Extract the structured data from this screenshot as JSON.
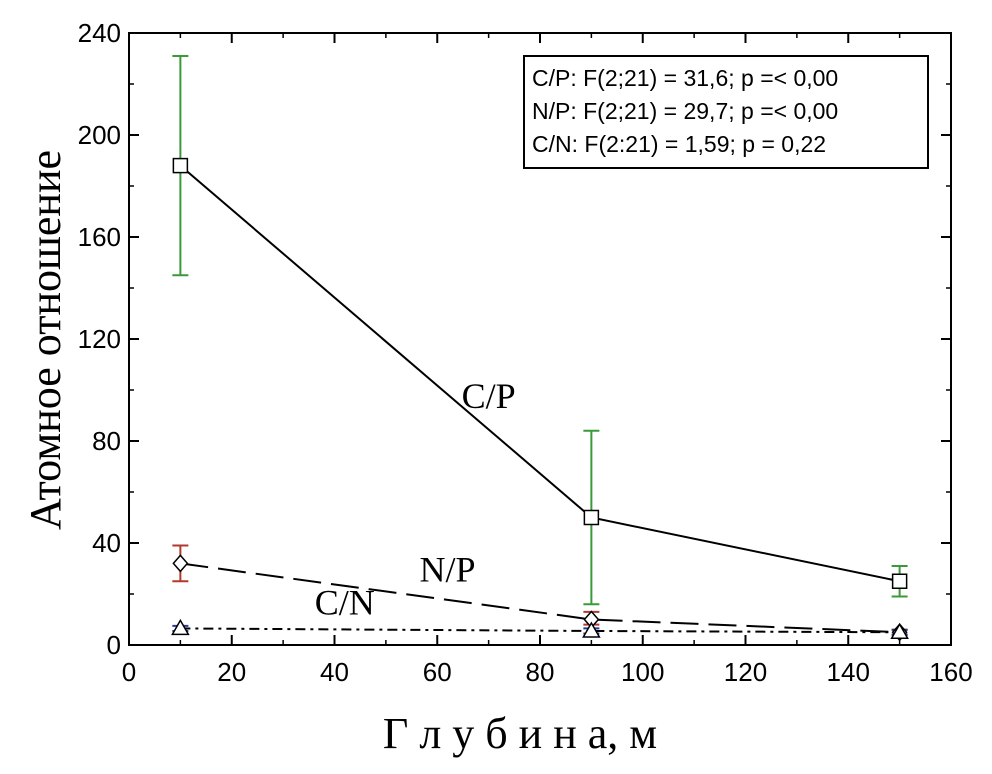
{
  "chart_data": {
    "type": "line",
    "xlabel": "Г л у б и н а, м",
    "ylabel": "Атомное отношение",
    "xlim": [
      0,
      160
    ],
    "ylim": [
      0,
      240
    ],
    "xticks": [
      0,
      20,
      40,
      60,
      80,
      100,
      120,
      140,
      160
    ],
    "yticks": [
      0,
      40,
      80,
      120,
      160,
      200,
      240
    ],
    "grid": false,
    "legend_position": "top-right",
    "stats_box": [
      "C/P: F(2;21) = 31,6; p =< 0,00",
      "N/P: F(2;21) = 29,7; p =< 0,00",
      "C/N: F(2:21) = 1,59; p = 0,22"
    ],
    "series": [
      {
        "name": "C/P",
        "x": [
          10,
          90,
          150
        ],
        "y": [
          188,
          50,
          25
        ],
        "err_low": [
          145,
          16,
          19
        ],
        "err_high": [
          231,
          84,
          31
        ],
        "marker": "square",
        "line_style": "solid",
        "error_color": "#3a9a3a"
      },
      {
        "name": "N/P",
        "x": [
          10,
          90,
          150
        ],
        "y": [
          32,
          10,
          5
        ],
        "err_low": [
          25,
          8,
          4
        ],
        "err_high": [
          39,
          13,
          6
        ],
        "marker": "diamond",
        "line_style": "dashed",
        "error_color": "#b03a2e"
      },
      {
        "name": "C/N",
        "x": [
          10,
          90,
          150
        ],
        "y": [
          6.5,
          5.5,
          5
        ],
        "err_low": [
          5.5,
          4.5,
          4
        ],
        "err_high": [
          7.5,
          6.5,
          6
        ],
        "marker": "triangle",
        "line_style": "dashdot",
        "error_color": "#2c3a9a"
      }
    ],
    "series_labels": [
      {
        "text": "C/P",
        "x": 70,
        "y": 93
      },
      {
        "text": "N/P",
        "x": 62,
        "y": 25
      },
      {
        "text": "C/N",
        "x": 42,
        "y": 12
      }
    ]
  }
}
